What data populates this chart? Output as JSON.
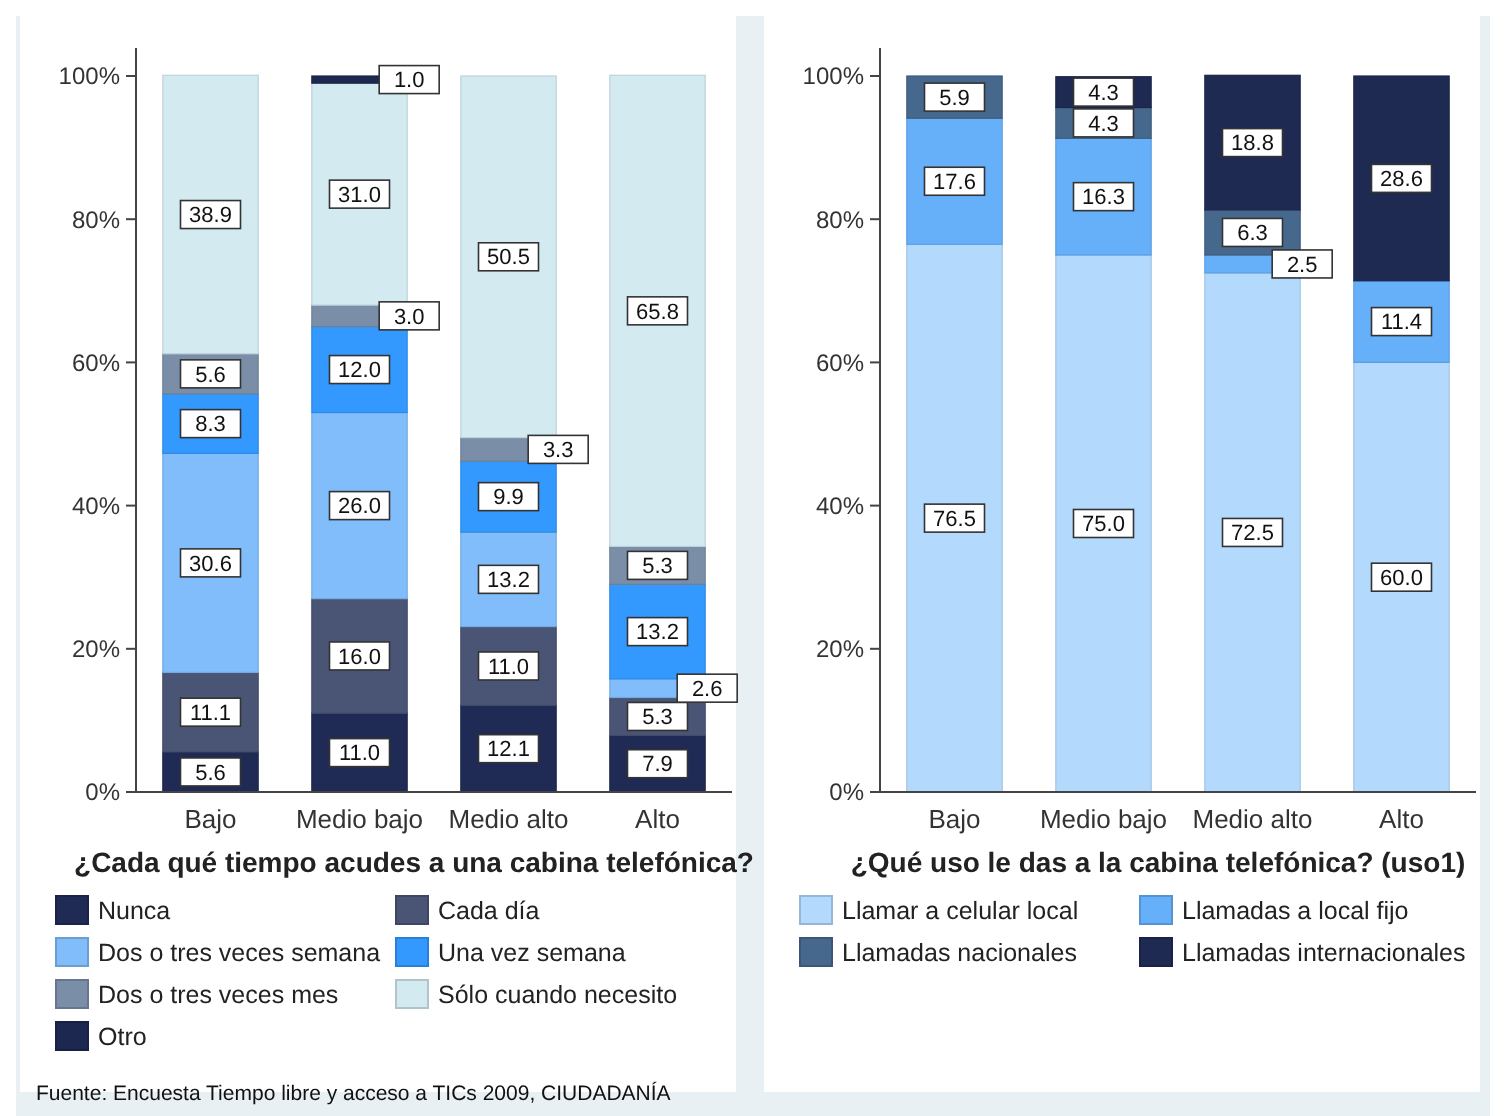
{
  "chart_data": [
    {
      "type": "bar",
      "stacked": true,
      "legend_title": "¿Cada qué tiempo acudes a una cabina telefónica?",
      "categories": [
        "Bajo",
        "Medio bajo",
        "Medio alto",
        "Alto"
      ],
      "ylim": [
        0,
        100
      ],
      "yticks": [
        {
          "value": 0,
          "label": "0%"
        },
        {
          "value": 20,
          "label": "20%"
        },
        {
          "value": 40,
          "label": "40%"
        },
        {
          "value": 60,
          "label": "60%"
        },
        {
          "value": 80,
          "label": "80%"
        },
        {
          "value": 100,
          "label": "100%"
        }
      ],
      "legend": "bottom",
      "annotations": [
        "Fuente: Encuesta Tiempo libre y acceso a TICs 2009, CIUDADANÍA"
      ],
      "series": [
        {
          "name": "Nunca",
          "color": "#1f2b55",
          "values": [
            5.6,
            11.0,
            12.1,
            7.9
          ],
          "value_labels": [
            "5.6",
            "11.0",
            "12.1",
            "7.9"
          ]
        },
        {
          "name": "Cada día",
          "color": "#4a5575",
          "values": [
            11.1,
            16.0,
            11.0,
            5.3
          ],
          "value_labels": [
            "11.1",
            "16.0",
            "11.0",
            "5.3"
          ]
        },
        {
          "name": "Dos o tres veces semana",
          "color": "#80bdfa",
          "values": [
            30.6,
            26.0,
            13.2,
            2.6
          ],
          "value_labels": [
            "30.6",
            "26.0",
            "13.2",
            "2.6"
          ]
        },
        {
          "name": "Una vez semana",
          "color": "#3399ff",
          "values": [
            8.3,
            12.0,
            9.9,
            13.2
          ],
          "value_labels": [
            "8.3",
            "12.0",
            "9.9",
            "13.2"
          ]
        },
        {
          "name": "Dos o tres veces mes",
          "color": "#7a8ea8",
          "values": [
            5.6,
            3.0,
            3.3,
            5.3
          ],
          "value_labels": [
            "5.6",
            "3.0",
            "3.3",
            "5.3"
          ]
        },
        {
          "name": "Sólo cuando necesito",
          "color": "#d3eaf0",
          "values": [
            38.9,
            31.0,
            50.5,
            65.8
          ],
          "value_labels": [
            "38.9",
            "31.0",
            "50.5",
            "65.8"
          ]
        },
        {
          "name": "Otro",
          "color": "#1d2850",
          "values": [
            null,
            1.0,
            null,
            null
          ],
          "value_labels": [
            null,
            "1.0",
            null,
            null
          ]
        }
      ]
    },
    {
      "type": "bar",
      "stacked": true,
      "legend_title": "¿Qué uso le das a la cabina telefónica? (uso1)",
      "categories": [
        "Bajo",
        "Medio bajo",
        "Medio alto",
        "Alto"
      ],
      "ylim": [
        0,
        100
      ],
      "yticks": [
        {
          "value": 0,
          "label": "0%"
        },
        {
          "value": 20,
          "label": "20%"
        },
        {
          "value": 40,
          "label": "40%"
        },
        {
          "value": 60,
          "label": "60%"
        },
        {
          "value": 80,
          "label": "80%"
        },
        {
          "value": 100,
          "label": "100%"
        }
      ],
      "legend": "bottom",
      "series": [
        {
          "name": "Llamar a celular local",
          "color": "#b3d9fc",
          "values": [
            76.5,
            75.0,
            72.5,
            60.0
          ],
          "value_labels": [
            "76.5",
            "75.0",
            "72.5",
            "60.0"
          ]
        },
        {
          "name": "Llamadas a local fijo",
          "color": "#66b0fa",
          "values": [
            17.6,
            16.3,
            2.5,
            11.4
          ],
          "value_labels": [
            "17.6",
            "16.3",
            "2.5",
            "11.4"
          ]
        },
        {
          "name": "Llamadas nacionales",
          "color": "#46688c",
          "values": [
            5.9,
            4.3,
            6.3,
            null
          ],
          "value_labels": [
            "5.9",
            "4.3",
            "6.3",
            null
          ]
        },
        {
          "name": "Llamadas internacionales",
          "color": "#1e2a52",
          "values": [
            null,
            4.3,
            18.8,
            28.6
          ],
          "value_labels": [
            null,
            "4.3",
            "18.8",
            "28.6"
          ]
        }
      ]
    }
  ]
}
